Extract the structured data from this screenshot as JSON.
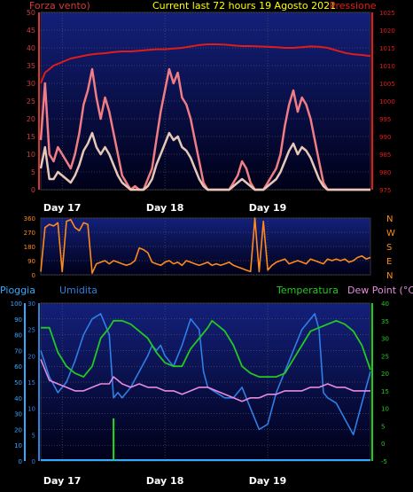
{
  "header": {
    "left_label": "Forza vento)",
    "title": "Current last 72 hours 19 Agosto 2021",
    "right_label": "Pressione"
  },
  "colors": {
    "background": "#000000",
    "plot_bg_top": "#0d1a6e",
    "plot_bg_bottom": "#000010",
    "grid": "#6a6a6a",
    "axis_left_wind": "#d23b3b",
    "pressure": "#e11b1b",
    "wind_gust": "#f07c84",
    "wind_speed": "#e7c7b7",
    "direction": "#ff8a1a",
    "title": "#ffff00",
    "humidity": "#2f7fe6",
    "temperature": "#22c922",
    "dewpoint": "#e58be0",
    "rain": "#33aaff",
    "rain_bar": "#22dd22"
  },
  "chart_data": [
    {
      "type": "line",
      "title": "Current last 72 hours 19 Agosto 2021",
      "y_left": {
        "label": "Forza vento)",
        "ylim": [
          0,
          50
        ],
        "ticks": [
          "0",
          "5",
          "10",
          "15",
          "20",
          "25",
          "30",
          "35",
          "40",
          "45",
          "50"
        ]
      },
      "y_right": {
        "label": "Pressione",
        "ylim": [
          975,
          1025
        ],
        "ticks": [
          "975",
          "980",
          "985",
          "990",
          "995",
          "1000",
          "1005",
          "1010",
          "1015",
          "1020",
          "1025"
        ]
      },
      "x_labels": [
        "Day 17",
        "Day 18",
        "Day 19"
      ],
      "x_label_hours": [
        0,
        24,
        48
      ],
      "xlim_hours": [
        -5,
        72
      ],
      "grid": true,
      "series": [
        {
          "name": "Pressione",
          "axis": "right",
          "x": [
            -5,
            -4,
            -3,
            -2,
            -1,
            0,
            2,
            4,
            6,
            8,
            10,
            12,
            14,
            16,
            18,
            20,
            22,
            24,
            26,
            28,
            30,
            32,
            34,
            36,
            38,
            40,
            42,
            44,
            46,
            48,
            50,
            52,
            54,
            56,
            58,
            60,
            62,
            64,
            66,
            68,
            70,
            72
          ],
          "y": [
            1005,
            1008,
            1009,
            1010,
            1010.5,
            1011,
            1012,
            1012.5,
            1013,
            1013.3,
            1013.5,
            1013.8,
            1014,
            1014,
            1014.2,
            1014.4,
            1014.6,
            1014.6,
            1014.8,
            1015,
            1015.4,
            1015.8,
            1016,
            1016,
            1015.9,
            1015.7,
            1015.5,
            1015.5,
            1015.4,
            1015.3,
            1015.2,
            1015,
            1015,
            1015.2,
            1015.4,
            1015.3,
            1015,
            1014.3,
            1013.6,
            1013.2,
            1013,
            1012.7
          ]
        },
        {
          "name": "Raffica",
          "axis": "left",
          "x": [
            -5,
            -4,
            -3,
            -2,
            -1,
            0,
            1,
            2,
            3,
            4,
            5,
            6,
            7,
            8,
            9,
            10,
            11,
            12,
            13,
            14,
            15,
            16,
            17,
            18,
            19,
            20,
            21,
            22,
            23,
            24,
            25,
            26,
            27,
            28,
            29,
            30,
            31,
            32,
            33,
            34,
            35,
            36,
            37,
            38,
            39,
            40,
            41,
            42,
            43,
            44,
            45,
            46,
            47,
            48,
            49,
            50,
            51,
            52,
            53,
            54,
            55,
            56,
            57,
            58,
            59,
            60,
            61,
            62,
            63,
            64,
            65,
            66,
            67,
            68,
            69,
            70,
            71,
            72
          ],
          "y": [
            14,
            30,
            10,
            8,
            12,
            10,
            8,
            6,
            10,
            16,
            24,
            28,
            34,
            26,
            20,
            26,
            22,
            16,
            10,
            4,
            2,
            0,
            1,
            0,
            0,
            3,
            6,
            14,
            22,
            28,
            34,
            30,
            33,
            26,
            24,
            20,
            14,
            8,
            2,
            0,
            0,
            0,
            0,
            0,
            0,
            2,
            4,
            8,
            6,
            2,
            0,
            0,
            0,
            2,
            4,
            6,
            10,
            18,
            24,
            28,
            22,
            26,
            24,
            20,
            14,
            8,
            2,
            0,
            0,
            0,
            0,
            0,
            0,
            0,
            0,
            0,
            0,
            0
          ]
        },
        {
          "name": "Velocita vento",
          "axis": "left",
          "x": [
            -5,
            -4,
            -3,
            -2,
            -1,
            0,
            1,
            2,
            3,
            4,
            5,
            6,
            7,
            8,
            9,
            10,
            11,
            12,
            13,
            14,
            15,
            16,
            17,
            18,
            19,
            20,
            21,
            22,
            23,
            24,
            25,
            26,
            27,
            28,
            29,
            30,
            31,
            32,
            33,
            34,
            35,
            36,
            37,
            38,
            39,
            40,
            41,
            42,
            43,
            44,
            45,
            46,
            47,
            48,
            49,
            50,
            51,
            52,
            53,
            54,
            55,
            56,
            57,
            58,
            59,
            60,
            61,
            62,
            63,
            64,
            65,
            66,
            67,
            68,
            69,
            70,
            71,
            72
          ],
          "y": [
            6,
            12,
            3,
            3,
            5,
            4,
            3,
            2,
            4,
            7,
            11,
            13,
            16,
            12,
            10,
            12,
            10,
            7,
            4,
            2,
            1,
            0,
            0,
            0,
            0,
            1,
            3,
            7,
            10,
            13,
            16,
            14,
            15,
            12,
            11,
            9,
            6,
            3,
            1,
            0,
            0,
            0,
            0,
            0,
            0,
            1,
            2,
            3,
            2,
            1,
            0,
            0,
            0,
            1,
            2,
            3,
            5,
            8,
            11,
            13,
            10,
            12,
            11,
            9,
            6,
            3,
            1,
            0,
            0,
            0,
            0,
            0,
            0,
            0,
            0,
            0,
            0,
            0
          ]
        }
      ]
    },
    {
      "type": "line",
      "y_left": {
        "ylim": [
          0,
          360
        ],
        "ticks": [
          "0",
          "90",
          "180",
          "270",
          "360"
        ]
      },
      "y_right": {
        "ticks": [
          "N",
          "E",
          "S",
          "W",
          "N"
        ]
      },
      "x_labels": [
        "Day 17",
        "Day 18",
        "Day 19"
      ],
      "xlim_hours": [
        -5,
        72
      ],
      "grid": true,
      "series": [
        {
          "name": "Direzione vento",
          "axis": "left",
          "x": [
            -5,
            -4,
            -3,
            -2,
            -1,
            0,
            1,
            2,
            3,
            4,
            5,
            6,
            7,
            8,
            9,
            10,
            11,
            12,
            13,
            14,
            15,
            16,
            17,
            18,
            19,
            20,
            21,
            22,
            23,
            24,
            25,
            26,
            27,
            28,
            29,
            30,
            31,
            32,
            33,
            34,
            35,
            36,
            37,
            38,
            39,
            40,
            41,
            42,
            43,
            44,
            45,
            46,
            47,
            48,
            49,
            50,
            51,
            52,
            53,
            54,
            55,
            56,
            57,
            58,
            59,
            60,
            61,
            62,
            63,
            64,
            65,
            66,
            67,
            68,
            69,
            70,
            71,
            72
          ],
          "y": [
            20,
            300,
            320,
            310,
            330,
            20,
            340,
            350,
            300,
            280,
            330,
            320,
            10,
            70,
            80,
            90,
            70,
            90,
            80,
            70,
            60,
            70,
            90,
            170,
            160,
            140,
            80,
            70,
            60,
            80,
            90,
            70,
            80,
            60,
            90,
            80,
            70,
            60,
            70,
            80,
            60,
            70,
            60,
            70,
            80,
            60,
            50,
            40,
            30,
            20,
            360,
            20,
            340,
            30,
            60,
            80,
            90,
            100,
            70,
            80,
            90,
            80,
            70,
            100,
            90,
            80,
            70,
            100,
            90,
            100,
            90,
            100,
            80,
            90,
            110,
            120,
            100,
            110
          ]
        }
      ]
    },
    {
      "type": "line",
      "y_left_rain": {
        "label": "Pioggia",
        "ylim": [
          0,
          100
        ],
        "ticks": [
          "0",
          "10",
          "20",
          "30",
          "40",
          "50",
          "60",
          "70",
          "80",
          "90",
          "100"
        ]
      },
      "y_left_hum": {
        "label": "Umidita",
        "ylim": [
          0,
          30
        ],
        "ticks": [
          "0",
          "5",
          "10",
          "15",
          "20",
          "25",
          "30"
        ]
      },
      "y_right": {
        "label": "Dew Point (°C)",
        "ylim": [
          -5,
          40
        ],
        "ticks": [
          "-5",
          "0",
          "5",
          "10",
          "15",
          "20",
          "25",
          "30",
          "35",
          "40"
        ]
      },
      "right_legend": "Temperatura",
      "x_labels": [
        "Day 17",
        "Day 18",
        "Day 19"
      ],
      "xlim_hours": [
        -5,
        72
      ],
      "grid": true,
      "series": [
        {
          "name": "Umidita",
          "axis": "hum",
          "x": [
            -5,
            -3,
            -1,
            1,
            3,
            5,
            7,
            9,
            11,
            12,
            13,
            14,
            16,
            18,
            20,
            21,
            22,
            23,
            24,
            26,
            28,
            30,
            32,
            33,
            34,
            36,
            38,
            40,
            42,
            44,
            46,
            48,
            50,
            52,
            54,
            56,
            58,
            59,
            60,
            61,
            62,
            64,
            66,
            68,
            70,
            72
          ],
          "y": [
            21,
            16,
            13,
            15,
            19,
            24,
            27,
            28,
            24,
            12,
            13,
            12,
            14,
            17,
            20,
            22,
            21,
            22,
            20,
            18,
            22,
            27,
            25,
            17,
            14,
            13,
            12,
            12,
            14,
            10,
            6,
            7,
            13,
            17,
            21,
            25,
            27,
            28,
            25,
            13,
            12,
            11,
            8,
            5,
            11,
            17
          ]
        },
        {
          "name": "Temperatura",
          "axis": "right",
          "x": [
            -5,
            -3,
            -1,
            1,
            3,
            5,
            7,
            9,
            11,
            12,
            13,
            14,
            16,
            18,
            20,
            22,
            24,
            26,
            28,
            30,
            32,
            34,
            35,
            36,
            38,
            40,
            42,
            44,
            46,
            48,
            50,
            52,
            54,
            56,
            58,
            60,
            62,
            64,
            66,
            68,
            70,
            72
          ],
          "y": [
            33,
            33,
            26,
            22,
            20,
            19,
            22,
            30,
            33,
            35,
            35,
            35,
            34,
            32,
            30,
            26,
            23,
            22,
            22,
            27,
            30,
            33,
            35,
            34,
            32,
            28,
            22,
            20,
            19,
            19,
            19,
            20,
            24,
            28,
            32,
            33,
            34,
            35,
            34,
            32,
            28,
            21
          ]
        },
        {
          "name": "Dew Point",
          "axis": "right",
          "x": [
            -5,
            -3,
            -1,
            1,
            3,
            5,
            7,
            9,
            11,
            12,
            13,
            14,
            16,
            18,
            20,
            22,
            24,
            26,
            28,
            30,
            32,
            34,
            36,
            38,
            40,
            42,
            44,
            46,
            48,
            50,
            52,
            54,
            56,
            58,
            60,
            62,
            64,
            66,
            68,
            70,
            72
          ],
          "y": [
            24,
            18,
            17,
            16,
            15,
            15,
            16,
            17,
            17,
            19,
            18,
            17,
            16,
            17,
            16,
            16,
            15,
            15,
            14,
            15,
            16,
            16,
            15,
            14,
            13,
            12,
            13,
            13,
            14,
            14,
            15,
            15,
            15,
            16,
            16,
            17,
            16,
            16,
            15,
            15,
            15
          ]
        }
      ],
      "rain_event": {
        "hours": 12,
        "value": 27
      }
    }
  ]
}
